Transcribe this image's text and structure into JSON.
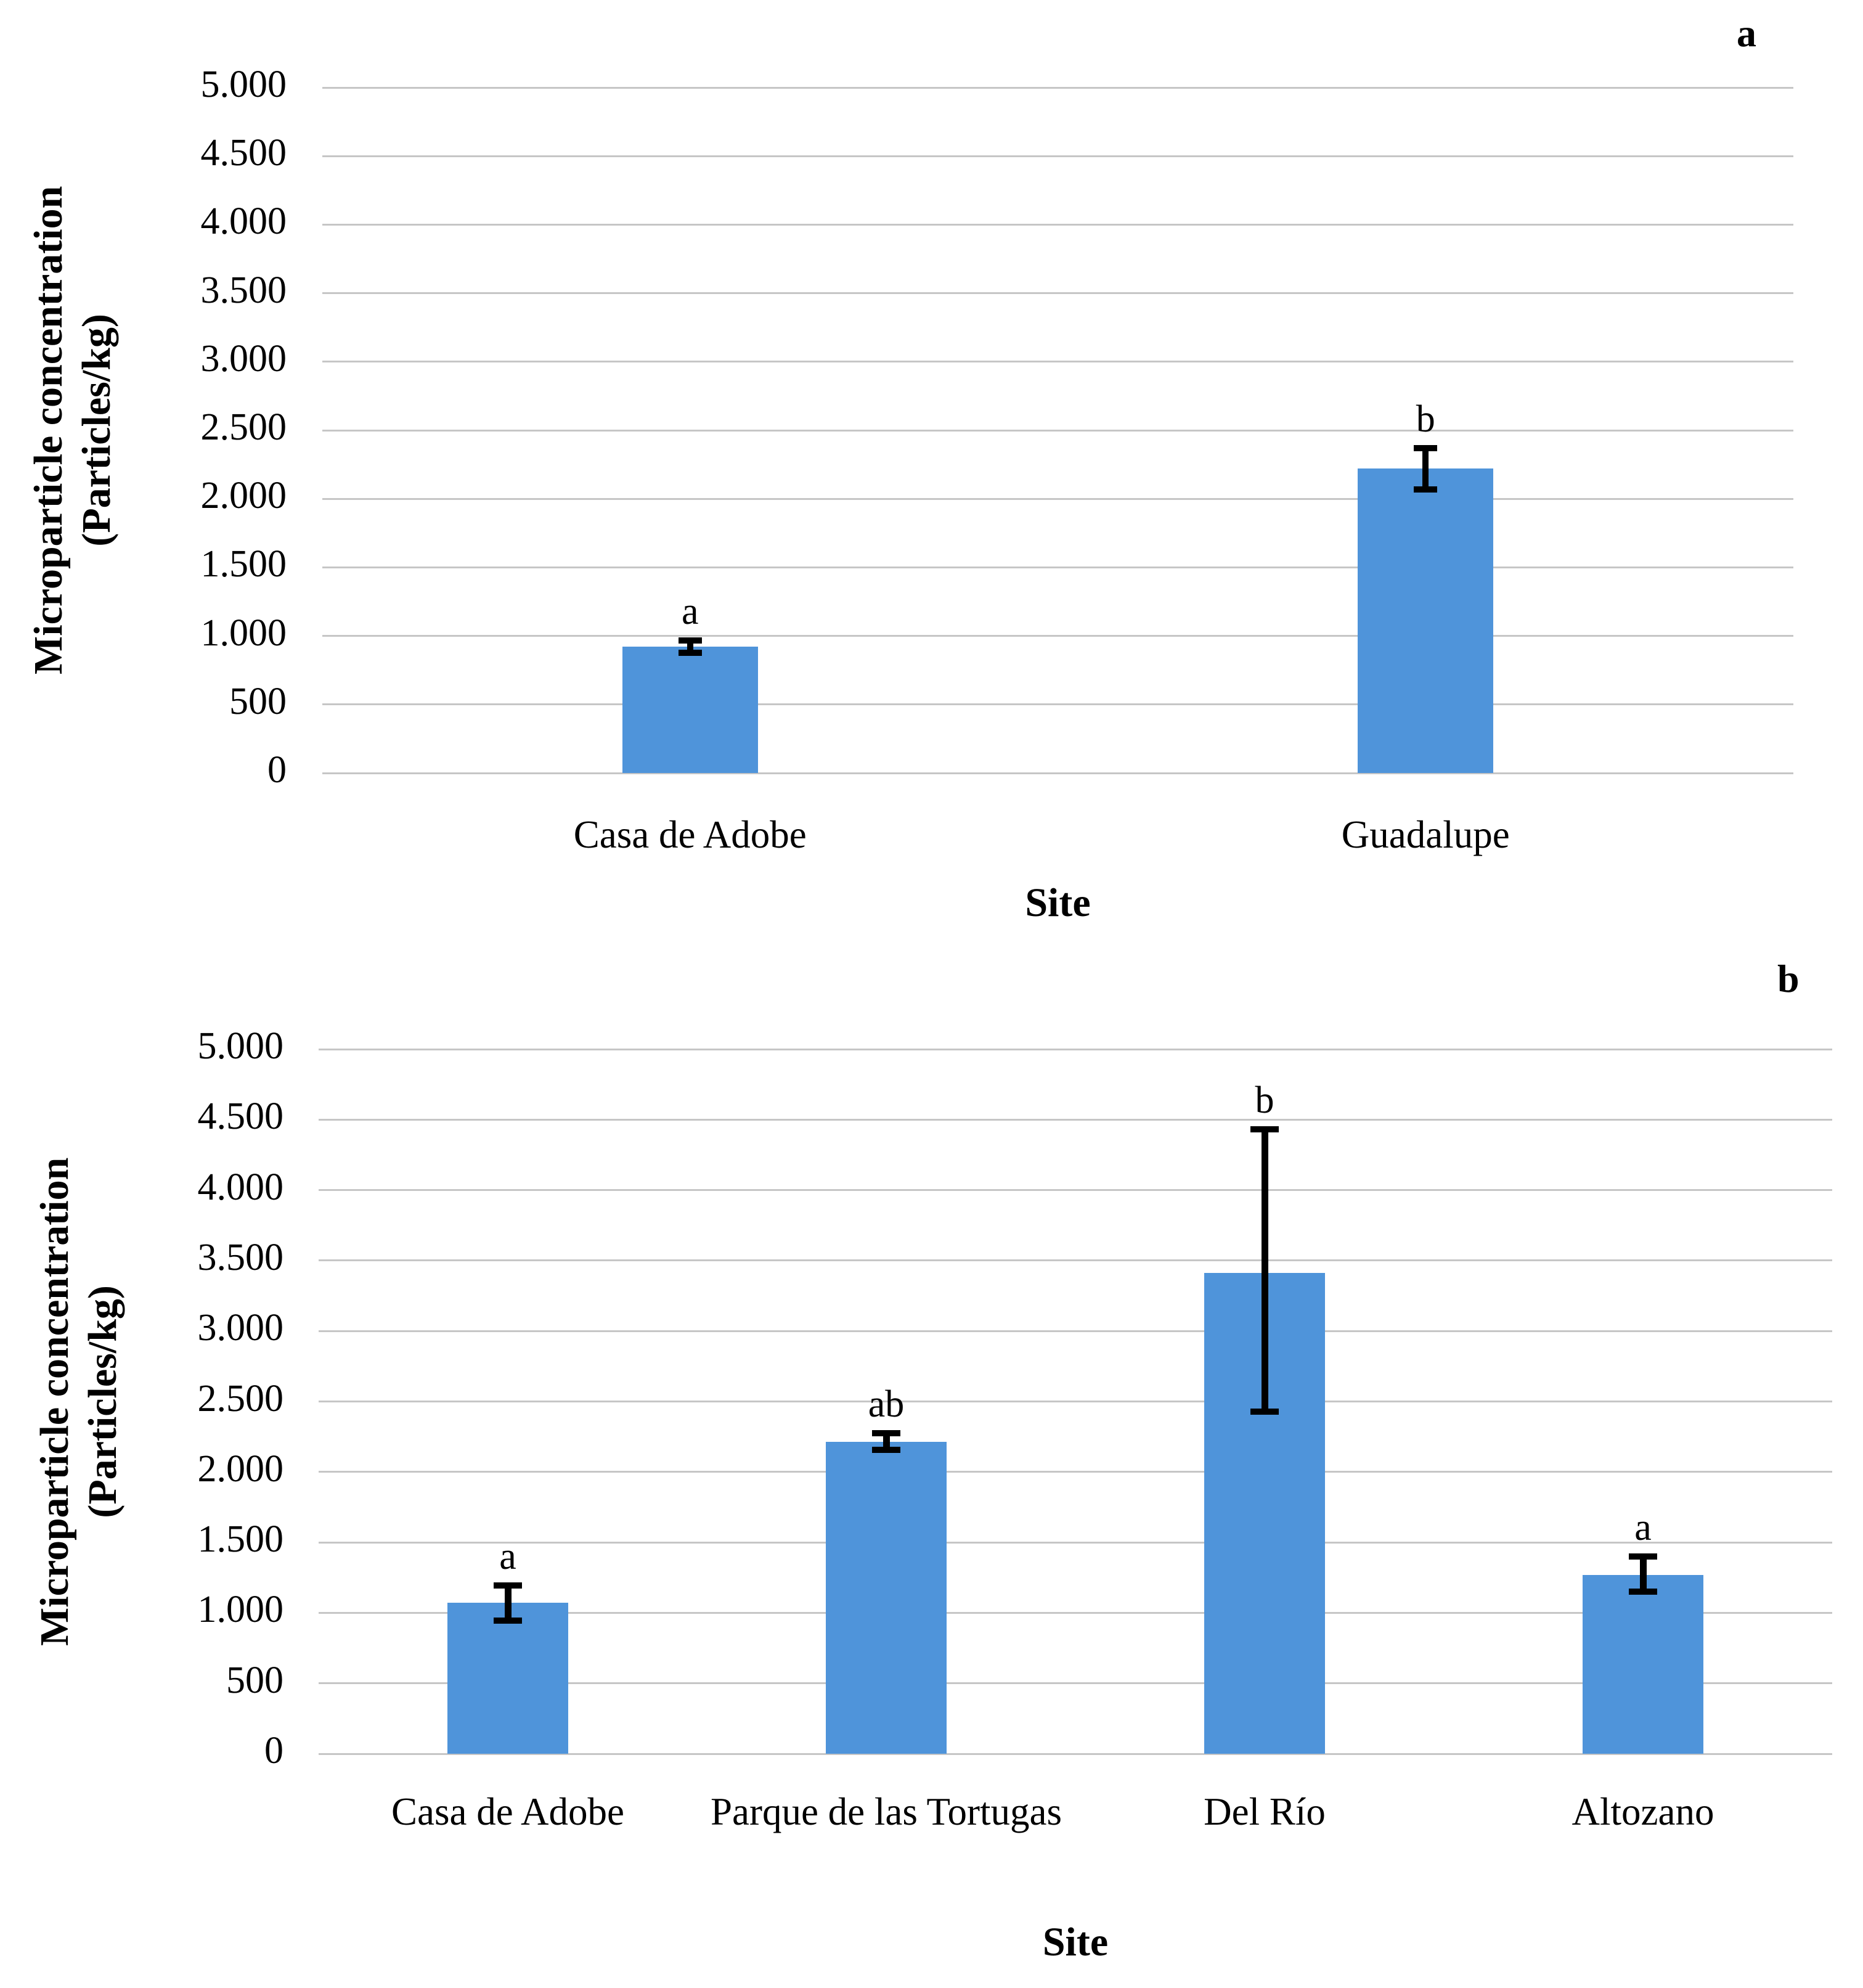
{
  "figure": {
    "background": "#ffffff",
    "bar_color": "#4f94da",
    "gridline_color": "#c6c6c6",
    "error_bar_color": "#000000",
    "text_color": "#000000"
  },
  "chart_data": [
    {
      "type": "bar",
      "panel_label": "a",
      "xlabel": "Site",
      "ylabel": "Microparticle concentration (Particles/kg)",
      "ylabel_lines": [
        "Microparticle concentration",
        "(Particles/kg)"
      ],
      "ylim": [
        0,
        5000
      ],
      "grid": true,
      "legend": "none",
      "ytick_labels": [
        "0",
        "500",
        "1.000",
        "1.500",
        "2.000",
        "2.500",
        "3.000",
        "3.500",
        "4.000",
        "4.500",
        "5.000"
      ],
      "ytick_values": [
        0,
        500,
        1000,
        1500,
        2000,
        2500,
        3000,
        3500,
        4000,
        4500,
        5000
      ],
      "categories": [
        "Casa de Adobe",
        "Guadalupe"
      ],
      "values": [
        920,
        2220
      ],
      "error_plus": [
        45,
        150
      ],
      "error_minus": [
        45,
        150
      ],
      "significance_letters": [
        "a",
        "b"
      ]
    },
    {
      "type": "bar",
      "panel_label": "b",
      "xlabel": "Site",
      "ylabel": "Microparticle concentration (Particles/kg)",
      "ylabel_lines": [
        "Microparticle concentration",
        "(Particles/kg)"
      ],
      "ylim": [
        0,
        5000
      ],
      "grid": true,
      "legend": "none",
      "ytick_labels": [
        "0",
        "500",
        "1.000",
        "1.500",
        "2.000",
        "2.500",
        "3.000",
        "3.500",
        "4.000",
        "4.500",
        "5.000"
      ],
      "ytick_values": [
        0,
        500,
        1000,
        1500,
        2000,
        2500,
        3000,
        3500,
        4000,
        4500,
        5000
      ],
      "categories": [
        "Casa de Adobe",
        "Parque de las Tortugas",
        "Del Río",
        "Altozano"
      ],
      "values": [
        1070,
        2215,
        3410,
        1270
      ],
      "error_plus": [
        125,
        60,
        1020,
        130
      ],
      "error_minus": [
        125,
        60,
        980,
        120
      ],
      "significance_letters": [
        "a",
        "ab",
        "b",
        "a"
      ]
    }
  ]
}
